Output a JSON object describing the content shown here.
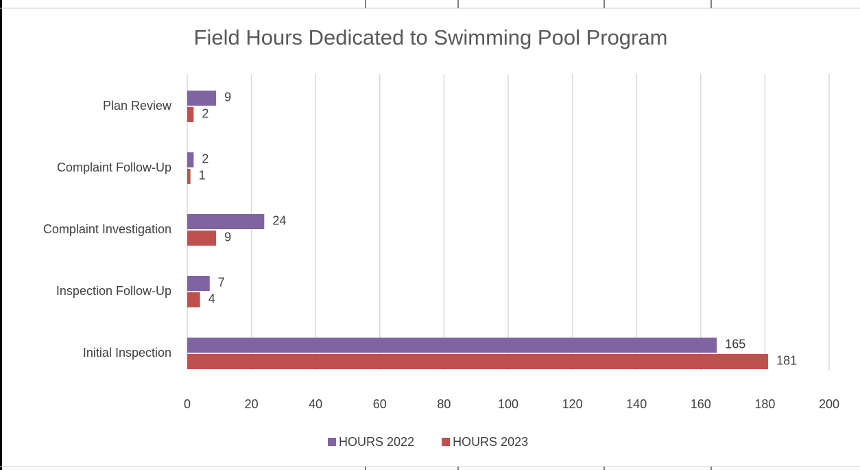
{
  "chart_data": {
    "type": "hbar",
    "title": "Field Hours Dedicated to Swimming Pool Program",
    "categories": [
      "Plan Review",
      "Complaint Follow-Up",
      "Complaint Investigation",
      "Inspection Follow-Up",
      "Initial Inspection"
    ],
    "series": [
      {
        "name": "HOURS 2022",
        "color": "#8064a2",
        "values": [
          9,
          2,
          24,
          7,
          165
        ]
      },
      {
        "name": "HOURS 2023",
        "color": "#c0504d",
        "values": [
          2,
          1,
          9,
          4,
          181
        ]
      }
    ],
    "xlim": [
      0,
      200
    ],
    "xticks": [
      0,
      20,
      40,
      60,
      80,
      100,
      120,
      140,
      160,
      180,
      200
    ],
    "grid": true,
    "legend": "bottom"
  }
}
